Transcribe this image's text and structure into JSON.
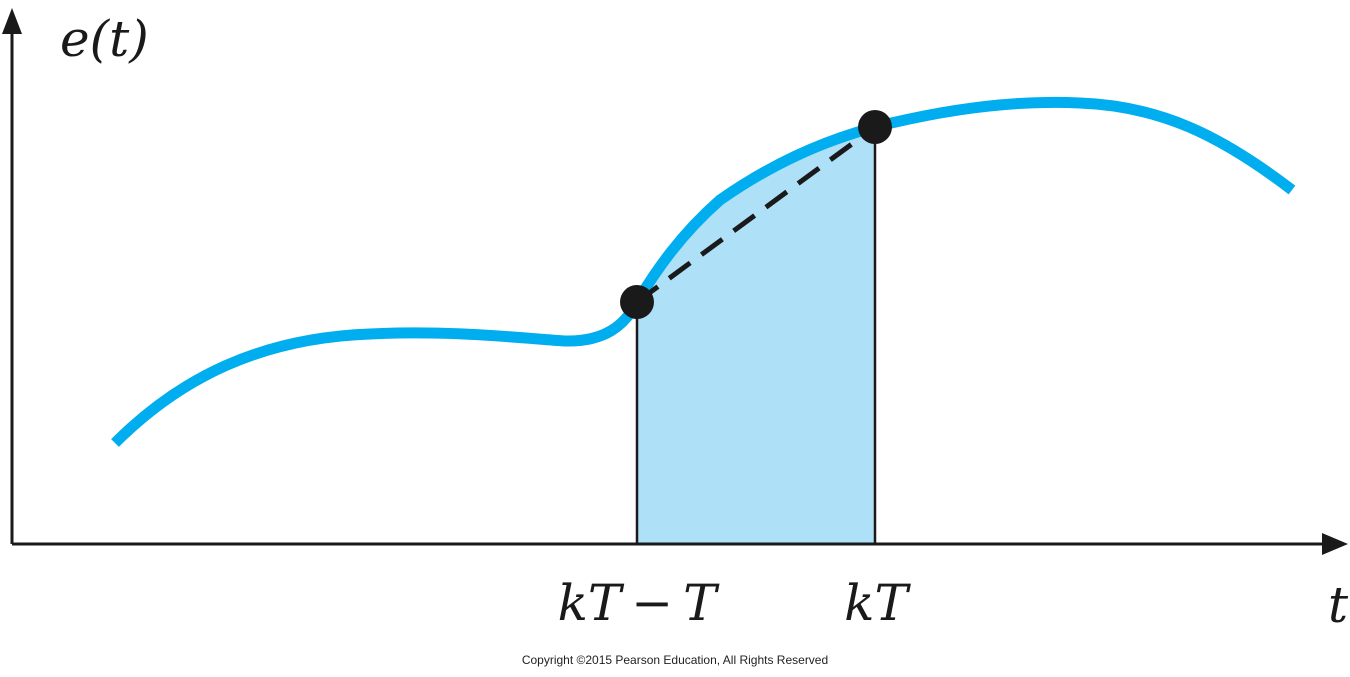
{
  "figure": {
    "y_axis_label": "e(t)",
    "x_axis_label": "t",
    "tick_labels": {
      "prev_sample": "kT − T",
      "curr_sample": "kT"
    }
  },
  "colors": {
    "curve": "#00aeef",
    "area_fill": "#aee0f8",
    "axis": "#1a1a1a",
    "sample_point": "#1a1a1a",
    "chord": "#1a1a1a"
  },
  "footer": {
    "copyright": "Copyright ©2015 Pearson Education, All Rights Reserved"
  }
}
